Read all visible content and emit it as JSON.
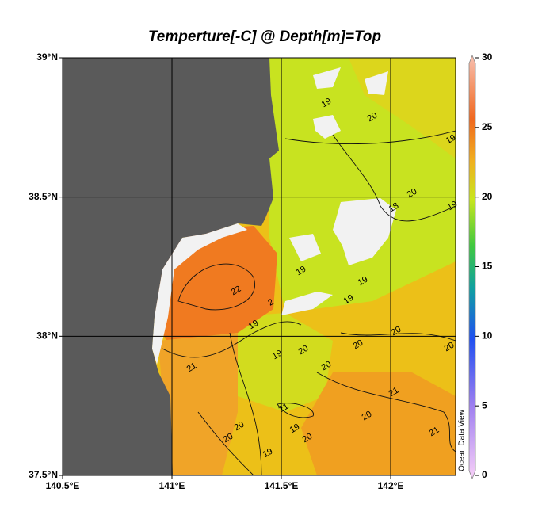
{
  "title": "Temperture[-C] @ Depth[m]=Top",
  "map": {
    "xlim": [
      140.5,
      142.297
    ],
    "ylim": [
      37.5,
      39
    ],
    "xticks": [
      {
        "value": 140.5,
        "label": "140.5°E"
      },
      {
        "value": 141,
        "label": "141°E"
      },
      {
        "value": 141.5,
        "label": "141.5°E"
      },
      {
        "value": 142,
        "label": "142°E"
      }
    ],
    "yticks": [
      {
        "value": 37.5,
        "label": "37.5°N"
      },
      {
        "value": 38,
        "label": "38°N"
      },
      {
        "value": 38.5,
        "label": "38.5°N"
      },
      {
        "value": 39,
        "label": "39°N"
      }
    ]
  },
  "colorbar": {
    "lim": [
      0,
      30
    ],
    "ticks": [
      0,
      5,
      10,
      15,
      20,
      25,
      30
    ]
  },
  "watermark": "Ocean Data View",
  "contour_labels": [
    "19",
    "20",
    "19",
    "20",
    "18",
    "19",
    "19",
    "19",
    "19",
    "22",
    "2",
    "19",
    "21",
    "19",
    "20",
    "20",
    "20",
    "20",
    "20",
    "21",
    "20",
    "21",
    "20",
    "20",
    "19",
    "20",
    "19",
    "21"
  ]
}
